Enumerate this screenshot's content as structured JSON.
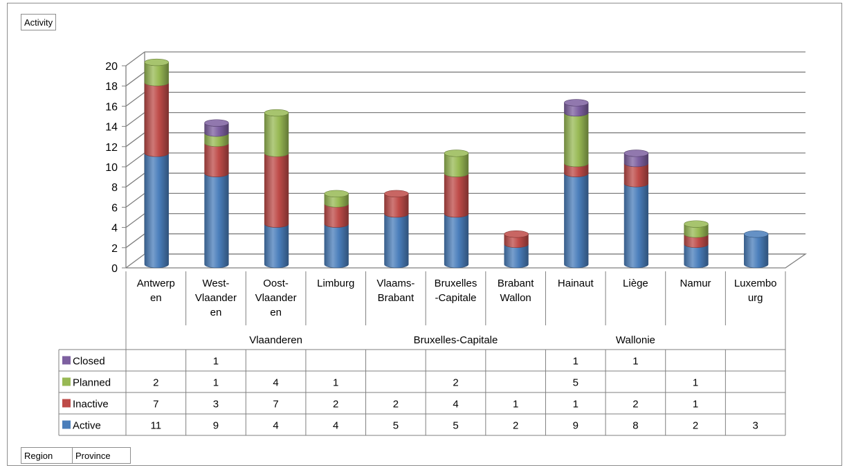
{
  "filter_field": "Activity",
  "row_fields": [
    "Region",
    "Province"
  ],
  "colors": {
    "Active": "#4a7ebb",
    "Inactive": "#be4b48",
    "Planned": "#98b954",
    "Closed": "#7d60a0"
  },
  "chart_data": {
    "type": "bar",
    "stacked": true,
    "style": "3d-cylinder",
    "ylim": [
      0,
      20
    ],
    "yticks": [
      0,
      2,
      4,
      6,
      8,
      10,
      12,
      14,
      16,
      18,
      20
    ],
    "grid": true,
    "legend_position": "data-table-left",
    "categories": [
      "Antwerpen",
      "West-Vlaanderen",
      "Oost-Vlaanderen",
      "Limburg",
      "Vlaams-Brabant",
      "Bruxelles-Capitale",
      "Brabant Wallon",
      "Hainaut",
      "Liège",
      "Namur",
      "Luxembourg"
    ],
    "category_labels": [
      [
        "Antwerp",
        "en"
      ],
      [
        "West-",
        "Vlaander",
        "en"
      ],
      [
        "Oost-",
        "Vlaander",
        "en"
      ],
      [
        "Limburg"
      ],
      [
        "Vlaams-",
        "Brabant"
      ],
      [
        "Bruxelles",
        "-Capitale"
      ],
      [
        "Brabant",
        "Wallon"
      ],
      [
        "Hainaut"
      ],
      [
        "Liège"
      ],
      [
        "Namur"
      ],
      [
        "Luxembo",
        "urg"
      ]
    ],
    "groups": [
      {
        "name": "Vlaanderen",
        "categories": [
          "Antwerpen",
          "West-Vlaanderen",
          "Oost-Vlaanderen",
          "Limburg",
          "Vlaams-Brabant"
        ]
      },
      {
        "name": "Bruxelles-Capitale",
        "categories": [
          "Bruxelles-Capitale"
        ]
      },
      {
        "name": "Wallonie",
        "categories": [
          "Brabant Wallon",
          "Hainaut",
          "Liège",
          "Namur",
          "Luxembourg"
        ]
      }
    ],
    "series": [
      {
        "name": "Active",
        "values": [
          11,
          9,
          4,
          4,
          5,
          5,
          2,
          9,
          8,
          2,
          3
        ]
      },
      {
        "name": "Inactive",
        "values": [
          7,
          3,
          7,
          2,
          2,
          4,
          1,
          1,
          2,
          1,
          null
        ]
      },
      {
        "name": "Planned",
        "values": [
          2,
          1,
          4,
          1,
          null,
          2,
          null,
          5,
          null,
          1,
          null
        ]
      },
      {
        "name": "Closed",
        "values": [
          null,
          1,
          null,
          null,
          null,
          null,
          null,
          1,
          1,
          null,
          null
        ]
      }
    ]
  }
}
